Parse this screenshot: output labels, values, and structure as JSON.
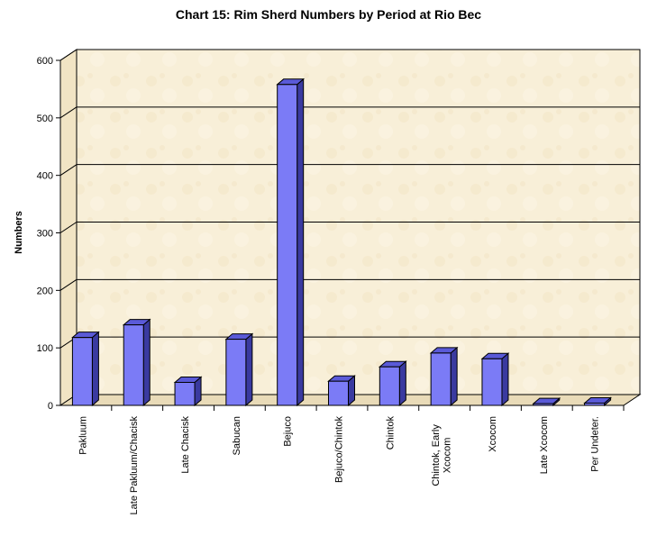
{
  "chart_data": {
    "type": "bar",
    "title": "Chart 15: Rim Sherd Numbers by Period at Rio Bec",
    "xlabel": "",
    "ylabel": "Numbers",
    "ylim": [
      0,
      600
    ],
    "yticks": [
      0,
      100,
      200,
      300,
      400,
      500,
      600
    ],
    "grid": true,
    "categories": [
      [
        "Pakluum"
      ],
      [
        "Late Pakluum/Chacisk"
      ],
      [
        "Late Chacisk"
      ],
      [
        "Sabucan"
      ],
      [
        "Bejuco"
      ],
      [
        "Bejuco/Chintok"
      ],
      [
        "Chintok"
      ],
      [
        "Chintok, Early",
        "Xcocom"
      ],
      [
        "Xcocom"
      ],
      [
        "Late Xcocom"
      ],
      [
        "Per Undeter."
      ]
    ],
    "values": [
      118,
      140,
      40,
      115,
      558,
      42,
      67,
      91,
      81,
      3,
      4
    ],
    "colors": {
      "bar_front": "#7b7bf6",
      "bar_side": "#3a3aa0",
      "bar_top": "#5a5ad8",
      "wall_bg": "#f8efd8",
      "gridline": "#000000"
    }
  }
}
